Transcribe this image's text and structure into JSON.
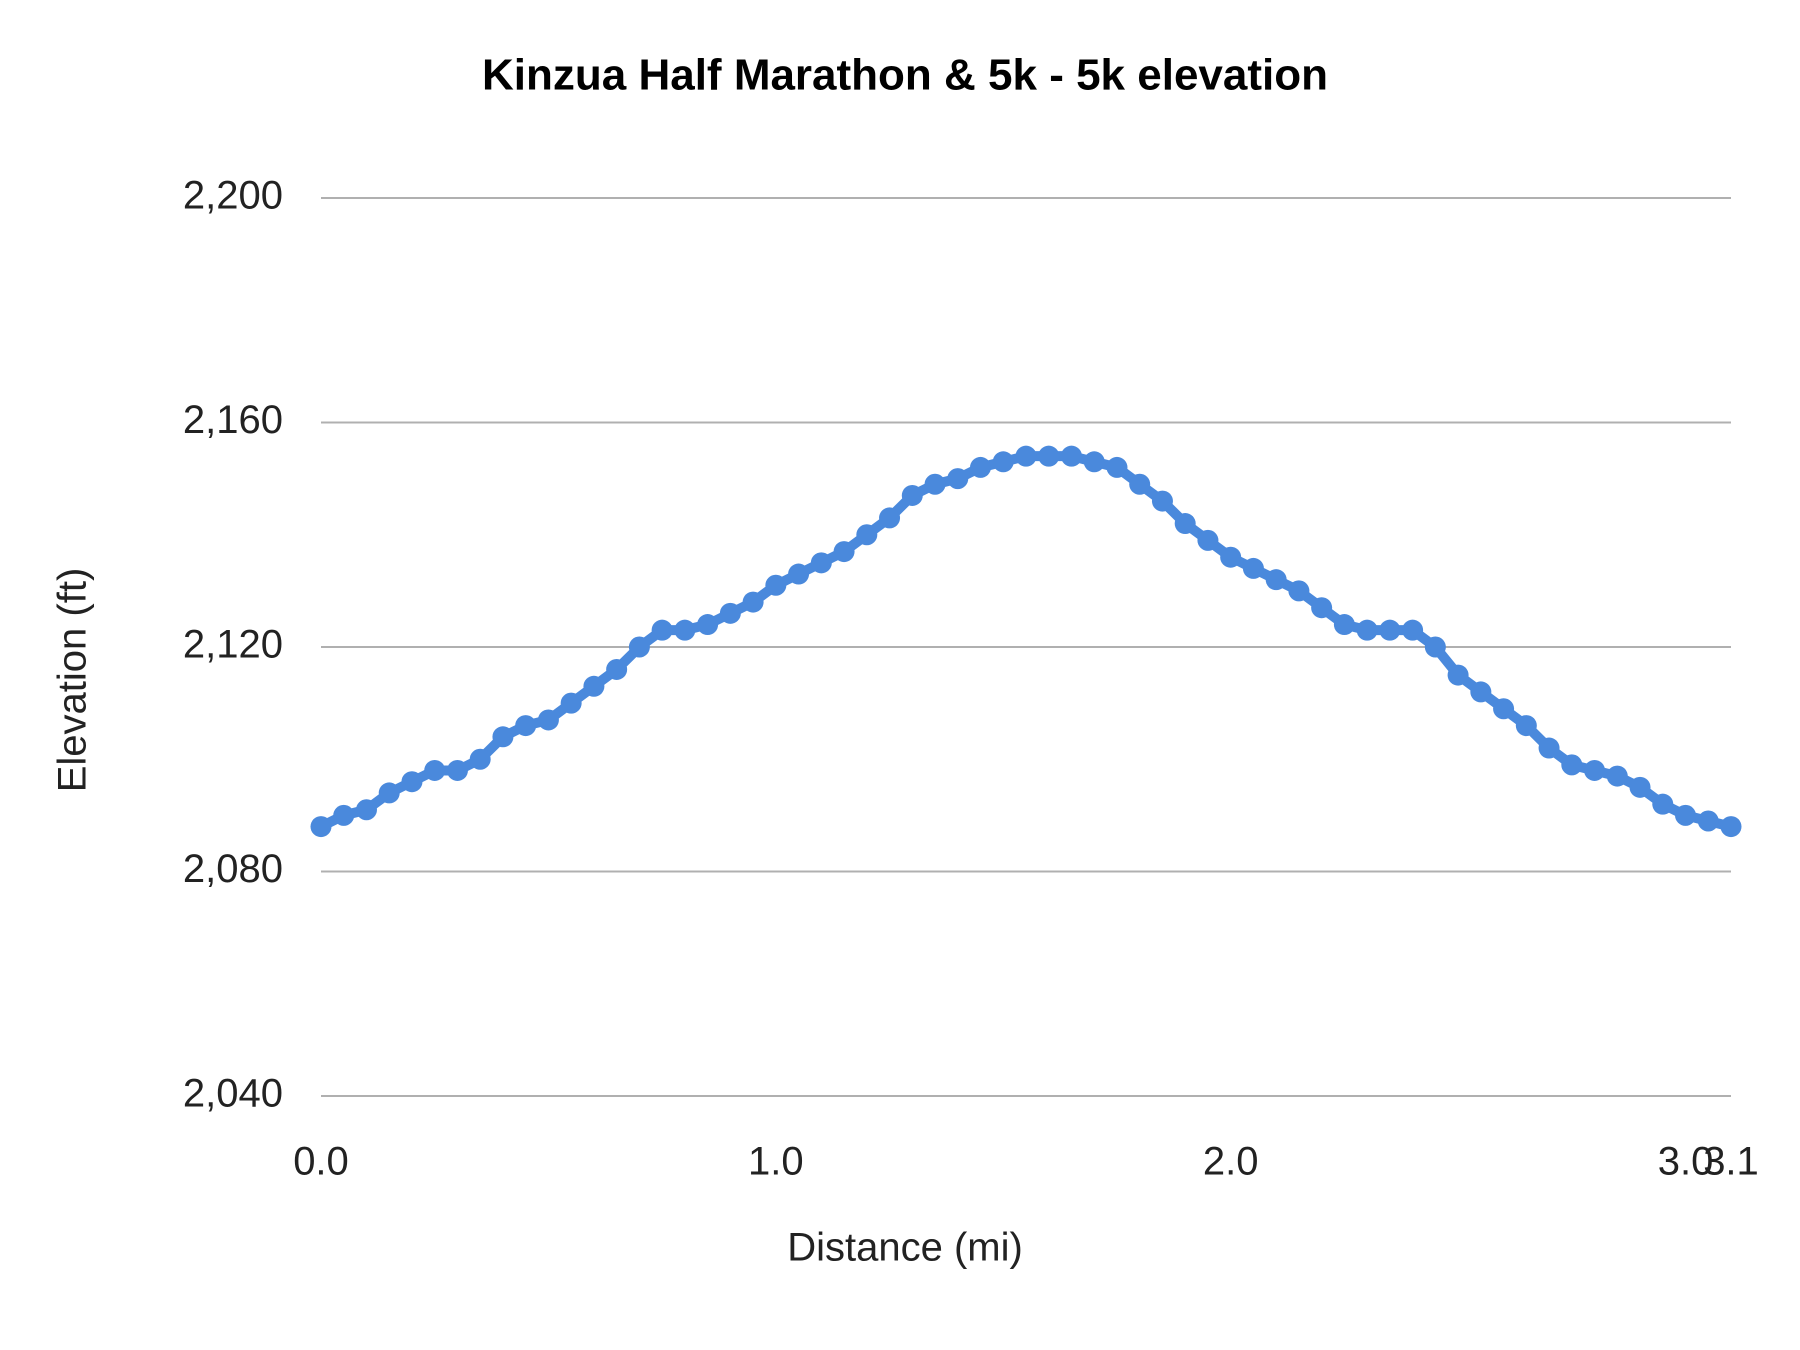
{
  "chart_data": {
    "type": "line",
    "title": "Kinzua Half Marathon & 5k - 5k elevation",
    "x_label": "Distance (mi)",
    "y_label": "Elevation (ft)",
    "color": "#4a89dc",
    "grid": true,
    "xlim": [
      0,
      3.1
    ],
    "ylim": [
      2040,
      2200
    ],
    "xticks": [
      {
        "value": 0,
        "label": "0.0"
      },
      {
        "value": 1,
        "label": "1.0"
      },
      {
        "value": 2,
        "label": "2.0"
      },
      {
        "value": 3,
        "label": "3.0"
      },
      {
        "value": 3.1,
        "label": "3.1"
      }
    ],
    "yticks": [
      {
        "value": 2040,
        "label": "2,040"
      },
      {
        "value": 2080,
        "label": "2,080"
      },
      {
        "value": 2120,
        "label": "2,120"
      },
      {
        "value": 2160,
        "label": "2,160"
      },
      {
        "value": 2200,
        "label": "2,200"
      }
    ],
    "x": [
      0,
      0.05,
      0.1,
      0.15,
      0.2,
      0.25,
      0.3,
      0.35,
      0.4,
      0.45,
      0.5,
      0.55,
      0.6,
      0.65,
      0.7,
      0.75,
      0.8,
      0.85,
      0.9,
      0.95,
      1.0,
      1.05,
      1.1,
      1.15,
      1.2,
      1.25,
      1.3,
      1.35,
      1.4,
      1.45,
      1.5,
      1.55,
      1.6,
      1.65,
      1.7,
      1.75,
      1.8,
      1.85,
      1.9,
      1.95,
      2.0,
      2.05,
      2.1,
      2.15,
      2.2,
      2.25,
      2.3,
      2.35,
      2.4,
      2.45,
      2.5,
      2.55,
      2.6,
      2.65,
      2.7,
      2.75,
      2.8,
      2.85,
      2.9,
      2.95,
      3.0,
      3.05,
      3.1
    ],
    "values": [
      2088,
      2090,
      2091,
      2094,
      2096,
      2098,
      2098,
      2100,
      2104,
      2106,
      2107,
      2110,
      2113,
      2116,
      2120,
      2123,
      2123,
      2124,
      2126,
      2128,
      2131,
      2133,
      2135,
      2137,
      2140,
      2143,
      2147,
      2149,
      2150,
      2152,
      2153,
      2154,
      2154,
      2154,
      2153,
      2152,
      2149,
      2146,
      2142,
      2139,
      2136,
      2134,
      2132,
      2130,
      2127,
      2124,
      2123,
      2123,
      2123,
      2120,
      2115,
      2112,
      2109,
      2106,
      2102,
      2099,
      2098,
      2097,
      2095,
      2092,
      2090,
      2089,
      2088
    ]
  }
}
